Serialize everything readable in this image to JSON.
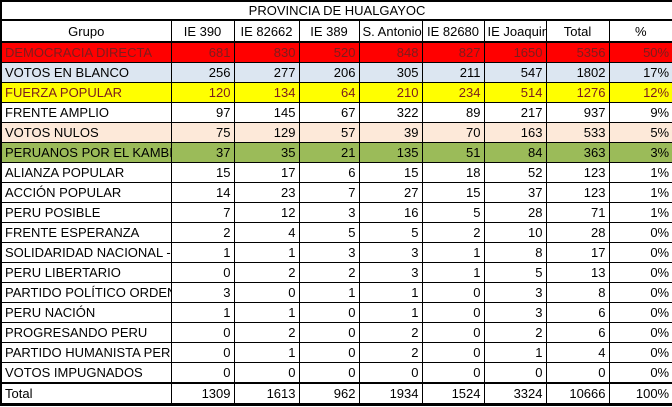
{
  "title": "PROVINCIA DE HUALGAYOC",
  "columns": [
    "Grupo",
    "IE 390",
    "IE 82662",
    "IE 389",
    "S. Antonio",
    "IE 82680",
    "IE Joaquin",
    "Total",
    "%"
  ],
  "colors": {
    "red_fill": "#ff0000",
    "blue_gray_fill": "#dce6f1",
    "yellow_fill": "#ffff00",
    "peach_fill": "#fde9d9",
    "green_fill": "#9bbb59",
    "white_fill": "#ffffff",
    "dark_red_text": "#7b1d1d",
    "black_text": "#000000",
    "border": "#000000"
  },
  "rows": [
    {
      "grupo": "DEMOCRACIA DIRECTA",
      "values": [
        "681",
        "830",
        "520",
        "848",
        "827",
        "1650",
        "5356"
      ],
      "pct": "50%",
      "bg": "#ff0000",
      "fg": "#7b1d1d"
    },
    {
      "grupo": "VOTOS EN BLANCO",
      "values": [
        "256",
        "277",
        "206",
        "305",
        "211",
        "547",
        "1802"
      ],
      "pct": "17%",
      "bg": "#dce6f1",
      "fg": "#000000"
    },
    {
      "grupo": "FUERZA POPULAR",
      "values": [
        "120",
        "134",
        "64",
        "210",
        "234",
        "514",
        "1276"
      ],
      "pct": "12%",
      "bg": "#ffff00",
      "fg": "#7b1d1d"
    },
    {
      "grupo": "FRENTE AMPLIO",
      "values": [
        "97",
        "145",
        "67",
        "322",
        "89",
        "217",
        "937"
      ],
      "pct": "9%",
      "bg": "#ffffff",
      "fg": "#000000"
    },
    {
      "grupo": "VOTOS NULOS",
      "values": [
        "75",
        "129",
        "57",
        "39",
        "70",
        "163",
        "533"
      ],
      "pct": "5%",
      "bg": "#fde9d9",
      "fg": "#000000"
    },
    {
      "grupo": "PERUANOS POR EL KAMBIO",
      "values": [
        "37",
        "35",
        "21",
        "135",
        "51",
        "84",
        "363"
      ],
      "pct": "3%",
      "bg": "#9bbb59",
      "fg": "#000000"
    },
    {
      "grupo": "ALIANZA POPULAR",
      "values": [
        "15",
        "17",
        "6",
        "15",
        "18",
        "52",
        "123"
      ],
      "pct": "1%",
      "bg": "#ffffff",
      "fg": "#000000"
    },
    {
      "grupo": "ACCIÓN POPULAR",
      "values": [
        "14",
        "23",
        "7",
        "27",
        "15",
        "37",
        "123"
      ],
      "pct": "1%",
      "bg": "#ffffff",
      "fg": "#000000"
    },
    {
      "grupo": "PERU POSIBLE",
      "values": [
        "7",
        "12",
        "3",
        "16",
        "5",
        "28",
        "71"
      ],
      "pct": "1%",
      "bg": "#ffffff",
      "fg": "#000000"
    },
    {
      "grupo": "FRENTE ESPERANZA",
      "values": [
        "2",
        "4",
        "5",
        "5",
        "2",
        "10",
        "28"
      ],
      "pct": "0%",
      "bg": "#ffffff",
      "fg": "#000000"
    },
    {
      "grupo": "SOLIDARIDAD NACIONAL - U",
      "values": [
        "1",
        "1",
        "3",
        "3",
        "1",
        "8",
        "17"
      ],
      "pct": "0%",
      "bg": "#ffffff",
      "fg": "#000000"
    },
    {
      "grupo": "PERU LIBERTARIO",
      "values": [
        "0",
        "2",
        "2",
        "3",
        "1",
        "5",
        "13"
      ],
      "pct": "0%",
      "bg": "#ffffff",
      "fg": "#000000"
    },
    {
      "grupo": "PARTIDO POLÍTICO ORDEN",
      "values": [
        "3",
        "0",
        "1",
        "1",
        "0",
        "3",
        "8"
      ],
      "pct": "0%",
      "bg": "#ffffff",
      "fg": "#000000"
    },
    {
      "grupo": "PERU NACIÓN",
      "values": [
        "1",
        "1",
        "0",
        "1",
        "0",
        "3",
        "6"
      ],
      "pct": "0%",
      "bg": "#ffffff",
      "fg": "#000000"
    },
    {
      "grupo": "PROGRESANDO PERU",
      "values": [
        "0",
        "2",
        "0",
        "2",
        "0",
        "2",
        "6"
      ],
      "pct": "0%",
      "bg": "#ffffff",
      "fg": "#000000"
    },
    {
      "grupo": "PARTIDO HUMANISTA PERU",
      "values": [
        "0",
        "1",
        "0",
        "2",
        "0",
        "1",
        "4"
      ],
      "pct": "0%",
      "bg": "#ffffff",
      "fg": "#000000"
    },
    {
      "grupo": "VOTOS IMPUGNADOS",
      "values": [
        "0",
        "0",
        "0",
        "0",
        "0",
        "0",
        "0"
      ],
      "pct": "0%",
      "bg": "#ffffff",
      "fg": "#000000"
    }
  ],
  "total": {
    "grupo": "Total",
    "values": [
      "1309",
      "1613",
      "962",
      "1934",
      "1524",
      "3324",
      "10666"
    ],
    "pct": "100%"
  }
}
